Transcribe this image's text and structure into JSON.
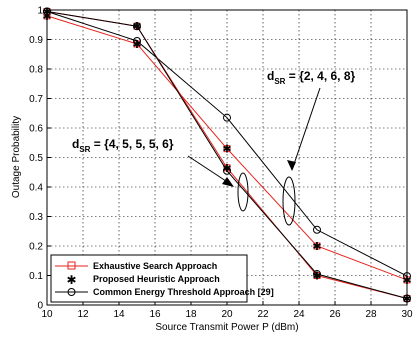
{
  "chart_data": {
    "type": "line",
    "xlabel": "Source Transmit Power P (dBm)",
    "ylabel": "Outage Probability",
    "xlim": [
      10,
      30
    ],
    "ylim": [
      0,
      1
    ],
    "xticks": [
      "10",
      "12",
      "14",
      "16",
      "18",
      "20",
      "22",
      "24",
      "26",
      "28",
      "30"
    ],
    "yticks": [
      "0",
      "0.1",
      "0.2",
      "0.3",
      "0.4",
      "0.5",
      "0.6",
      "0.7",
      "0.8",
      "0.9",
      "1"
    ],
    "grid": true,
    "legend_position": "bottom-left",
    "legend": [
      {
        "label": "Exhaustive Search Approach",
        "color": "#e8231e",
        "marker": "square"
      },
      {
        "label": "Proposed Heuristic Approach",
        "color": "#000000",
        "marker": "star"
      },
      {
        "label": "Common Energy Threshold Approach [29]",
        "color": "#000000",
        "marker": "circle"
      }
    ],
    "x": [
      10,
      15,
      20,
      25,
      30
    ],
    "series": [
      {
        "group": "{2, 4, 6, 8}",
        "method": "Exhaustive Search Approach",
        "color": "#e8231e",
        "marker": "square",
        "values": [
          0.98,
          0.885,
          0.53,
          0.2,
          0.085
        ]
      },
      {
        "group": "{2, 4, 6, 8}",
        "method": "Proposed Heuristic Approach",
        "color": "#000000",
        "marker": "star",
        "values": [
          0.98,
          0.885,
          0.53,
          0.2,
          0.085
        ]
      },
      {
        "group": "{2, 4, 6, 8}",
        "method": "Common Energy Threshold Approach [29]",
        "color": "#000000",
        "marker": "circle",
        "values": [
          0.995,
          0.895,
          0.635,
          0.255,
          0.098
        ]
      },
      {
        "group": "{4, 5, 5, 5, 6}",
        "method": "Exhaustive Search Approach",
        "color": "#e8231e",
        "marker": "square",
        "values": [
          0.995,
          0.945,
          0.465,
          0.1,
          0.022
        ]
      },
      {
        "group": "{4, 5, 5, 5, 6}",
        "method": "Proposed Heuristic Approach",
        "color": "#000000",
        "marker": "star",
        "values": [
          0.995,
          0.945,
          0.465,
          0.1,
          0.022
        ]
      },
      {
        "group": "{4, 5, 5, 5, 6}",
        "method": "Common Energy Threshold Approach [29]",
        "color": "#000000",
        "marker": "circle",
        "values": [
          0.995,
          0.945,
          0.455,
          0.105,
          0.022
        ]
      }
    ],
    "annotations": [
      {
        "text_main": "d",
        "text_sub": "SR",
        "text_rest": " = {2, 4, 6, 8}"
      },
      {
        "text_main": "d",
        "text_sub": "SR",
        "text_rest": " = {4, 5, 5, 5, 6}"
      }
    ]
  }
}
